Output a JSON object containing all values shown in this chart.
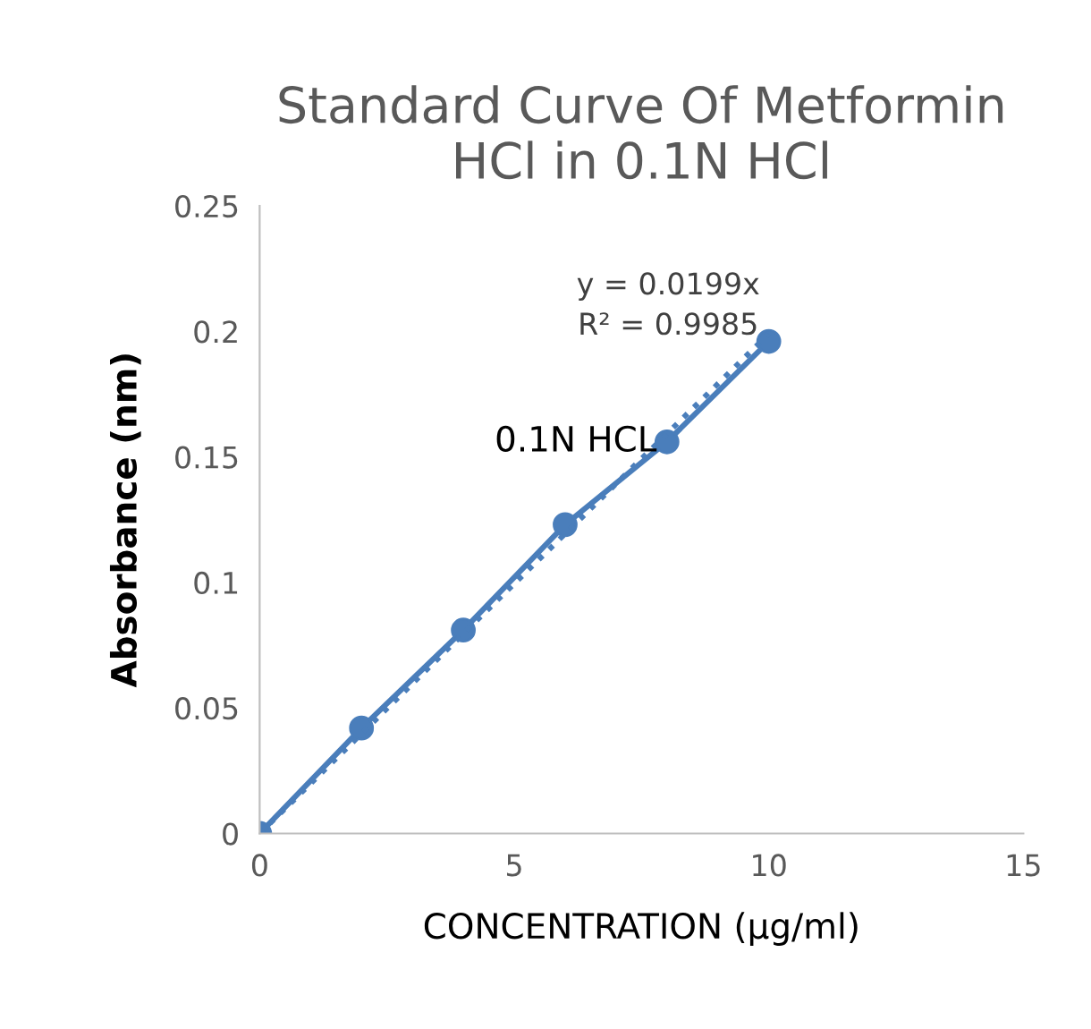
{
  "chart_data": {
    "type": "line",
    "title": "Standard Curve Of Metformin\nHCl in 0.1N HCl",
    "xlabel": "CONCENTRATION (µg/ml)",
    "ylabel": "Absorbance (nm)",
    "series": [
      {
        "name": "0.1N HCL",
        "color": "#4a7ebb",
        "x": [
          0,
          2,
          4,
          6,
          8,
          10
        ],
        "values": [
          0,
          0.042,
          0.081,
          0.123,
          0.156,
          0.196
        ],
        "marker": "circle",
        "line_style": "solid"
      },
      {
        "type": "line",
        "color": "#4a7ebb",
        "x": [
          0,
          10
        ],
        "values": [
          0,
          0.199
        ],
        "marker": "none",
        "line_style": "dotted"
      }
    ],
    "annotations": [
      "y = 0.0199x\nR² = 0.9985"
    ],
    "xlim": [
      0,
      15
    ],
    "xticks": [
      0,
      5,
      10,
      15
    ],
    "ylim": [
      0,
      0.25
    ],
    "yticks": [
      0,
      0.05,
      0.1,
      0.15,
      0.2,
      0.25
    ],
    "grid": false,
    "legend": false
  }
}
